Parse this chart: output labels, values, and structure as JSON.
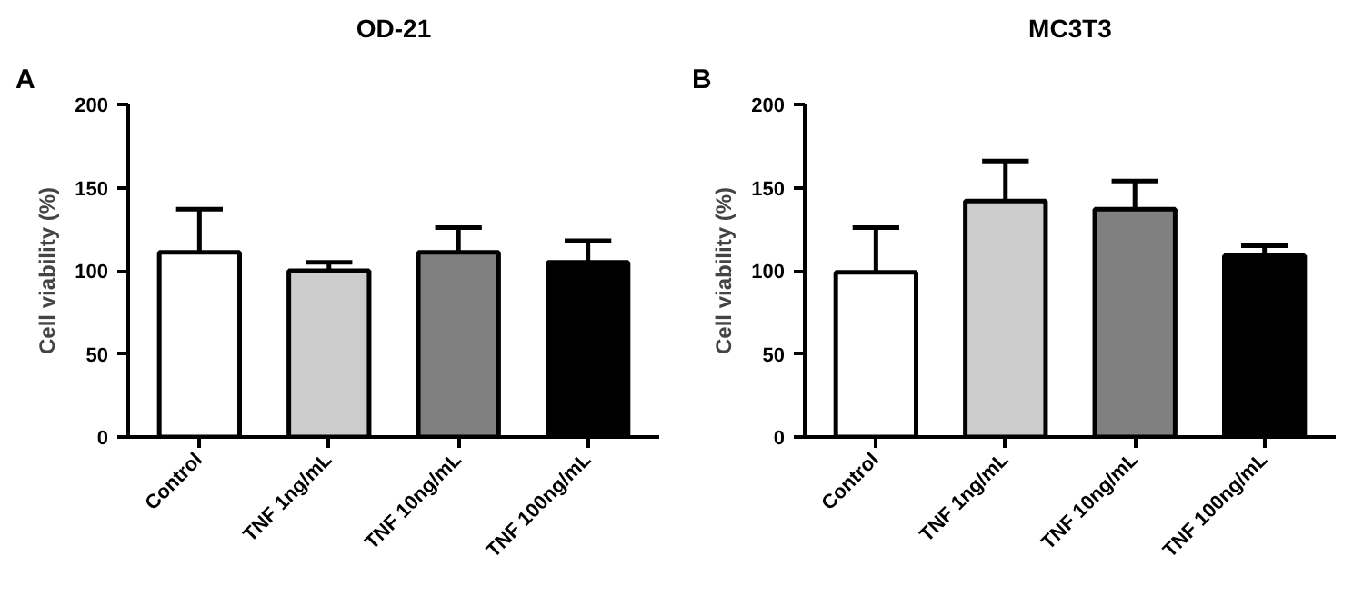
{
  "chart_data": [
    {
      "type": "bar",
      "title": "OD-21",
      "ylabel": "Cell viability (%)",
      "annotations": [
        "A"
      ],
      "categories": [
        "Control",
        "TNF 1ng/mL",
        "TNF 10ng/mL",
        "TNF 100ng/mL"
      ],
      "values": [
        111,
        100,
        111,
        105
      ],
      "errors": [
        [
          111,
          137
        ],
        [
          100,
          105
        ],
        [
          111,
          126
        ],
        [
          105,
          118
        ]
      ],
      "colors": [
        "#ffffff",
        "#cccccc",
        "#808080",
        "#000000"
      ],
      "ylim": [
        0,
        200
      ],
      "yticks": [
        0,
        50,
        100,
        150,
        200
      ],
      "grid": false
    },
    {
      "type": "bar",
      "title": "MC3T3",
      "ylabel": "Cell viability (%)",
      "annotations": [
        "B"
      ],
      "categories": [
        "Control",
        "TNF 1ng/mL",
        "TNF 10ng/mL",
        "TNF 100ng/mL"
      ],
      "values": [
        99,
        142,
        137,
        109
      ],
      "errors": [
        [
          99,
          126
        ],
        [
          142,
          166
        ],
        [
          137,
          154
        ],
        [
          109,
          115
        ]
      ],
      "colors": [
        "#ffffff",
        "#cccccc",
        "#808080",
        "#000000"
      ],
      "ylim": [
        0,
        200
      ],
      "yticks": [
        0,
        50,
        100,
        150,
        200
      ],
      "grid": false
    }
  ]
}
